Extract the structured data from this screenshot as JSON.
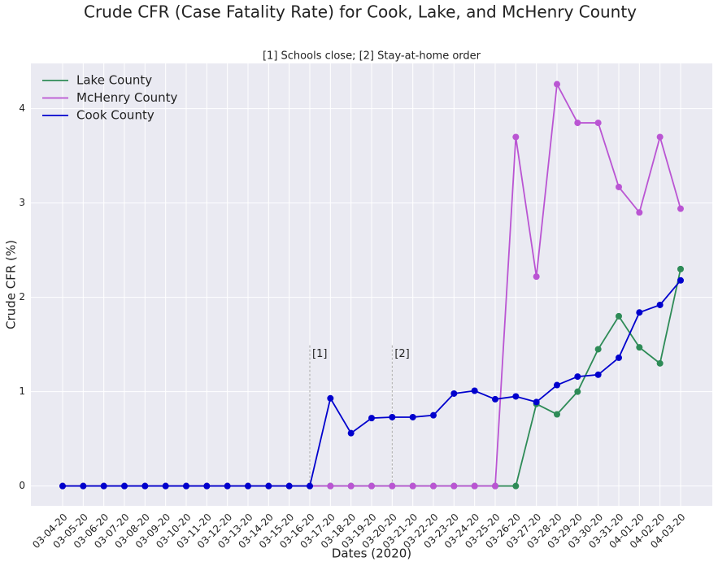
{
  "chart_data": {
    "type": "line",
    "title": "Crude CFR (Case Fatality Rate) for Cook, Lake, and McHenry County",
    "subtitle": "[1] Schools close; [2] Stay-at-home order",
    "xlabel": "Dates (2020)",
    "ylabel": "Crude CFR (%)",
    "categories": [
      "03-04-20",
      "03-05-20",
      "03-06-20",
      "03-07-20",
      "03-08-20",
      "03-09-20",
      "03-10-20",
      "03-11-20",
      "03-12-20",
      "03-13-20",
      "03-14-20",
      "03-15-20",
      "03-16-20",
      "03-17-20",
      "03-18-20",
      "03-19-20",
      "03-20-20",
      "03-21-20",
      "03-22-20",
      "03-23-20",
      "03-24-20",
      "03-25-20",
      "03-26-20",
      "03-27-20",
      "03-28-20",
      "03-29-20",
      "03-30-20",
      "03-31-20",
      "04-01-20",
      "04-02-20",
      "04-03-20"
    ],
    "series": [
      {
        "name": "Lake County",
        "color": "#2e8b57",
        "values": [
          0,
          0,
          0,
          0,
          0,
          0,
          0,
          0,
          0,
          0,
          0,
          0,
          0,
          0,
          0,
          0,
          0,
          0,
          0,
          0,
          0,
          0,
          0,
          0.87,
          0.76,
          1.0,
          1.45,
          1.8,
          1.47,
          1.3,
          2.3
        ]
      },
      {
        "name": "McHenry County",
        "color": "#ba55d3",
        "values": [
          0,
          0,
          0,
          0,
          0,
          0,
          0,
          0,
          0,
          0,
          0,
          0,
          0,
          0,
          0,
          0,
          0,
          0,
          0,
          0,
          0,
          0,
          3.7,
          2.22,
          4.26,
          3.85,
          3.85,
          3.17,
          2.9,
          3.7,
          2.94
        ]
      },
      {
        "name": "Cook County",
        "color": "#0000cd",
        "values": [
          0,
          0,
          0,
          0,
          0,
          0,
          0,
          0,
          0,
          0,
          0,
          0,
          0,
          0.93,
          0.56,
          0.72,
          0.73,
          0.73,
          0.75,
          0.98,
          1.01,
          0.92,
          0.95,
          0.89,
          1.07,
          1.16,
          1.18,
          1.36,
          1.84,
          1.92,
          2.18
        ]
      }
    ],
    "annotations": [
      {
        "label": "[1]",
        "x": "03-16-20"
      },
      {
        "label": "[2]",
        "x": "03-20-20"
      }
    ],
    "ylim": [
      -0.21,
      4.48
    ],
    "yticks": [
      0,
      1,
      2,
      3,
      4
    ],
    "grid": true,
    "legend": "upper left"
  }
}
